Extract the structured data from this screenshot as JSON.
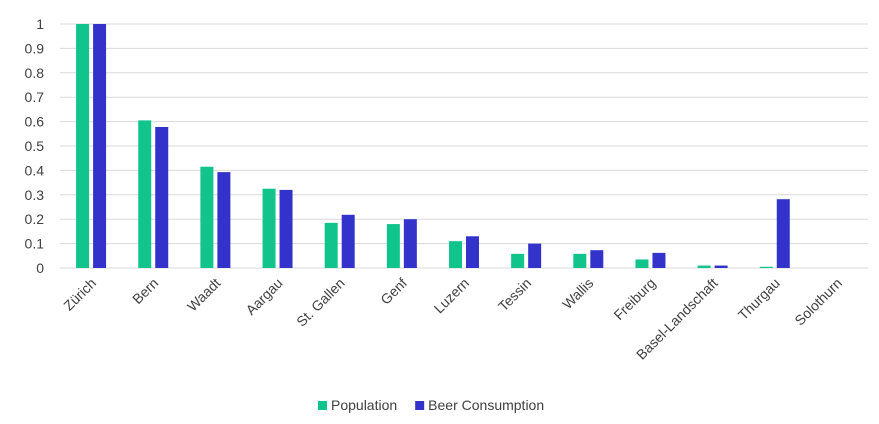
{
  "chart_data": {
    "type": "bar",
    "title": "",
    "xlabel": "",
    "ylabel": "",
    "ylim": [
      0,
      1
    ],
    "yticks": [
      "0",
      "0.1",
      "0.2",
      "0.3",
      "0.4",
      "0.5",
      "0.6",
      "0.7",
      "0.8",
      "0.9",
      "1"
    ],
    "grid": true,
    "legend_position": "bottom",
    "categories": [
      "Zürich",
      "Bern",
      "Waadt",
      "Aargau",
      "St. Gallen",
      "Genf",
      "Luzern",
      "Tessin",
      "Wallis",
      "Freiburg",
      "Basel-Landschaft",
      "Thurgau",
      "Solothurn"
    ],
    "series": [
      {
        "name": "Population",
        "color": "#10c48c",
        "values": [
          1.0,
          0.605,
          0.415,
          0.325,
          0.185,
          0.18,
          0.11,
          0.058,
          0.058,
          0.035,
          0.01,
          0.005,
          0.0
        ]
      },
      {
        "name": "Beer Consumption",
        "color": "#3333cc",
        "values": [
          1.0,
          0.578,
          0.393,
          0.32,
          0.218,
          0.2,
          0.13,
          0.1,
          0.073,
          0.062,
          0.01,
          0.282,
          0.0
        ]
      }
    ]
  }
}
